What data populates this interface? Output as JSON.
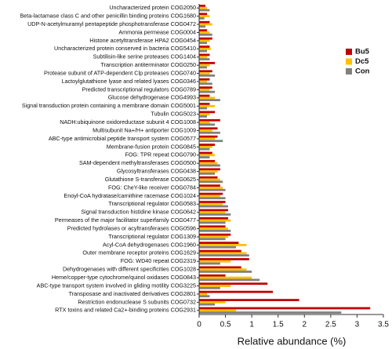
{
  "chart_data": {
    "type": "hbar",
    "x_label": "Relative abundance (%)",
    "categories": [
      "Uncharacterized protein COG2050",
      "Beta-lactamase class C and other penicillin binding proteins COG1680",
      "UDP-N-acetylmuramyl pentapeptide phosphotransferase COG0472",
      "Ammonia permease COG0004",
      "Histone acetyltransferase HPA2 COG0454",
      "Uncharacterized protein conserved in bacteria COG5410",
      "Subtilisin-like serine proteases COG1404",
      "Transcription antiterminator COG0250",
      "Protease subunit of ATP-dependent Clp proteases COG0740",
      "Lactoylglutathione lyase and related lyases COG0346",
      "Predicted transcriptional regulators COG0789",
      "Glucose dehydrogenase COG4993",
      "Signal transduction protein containing a membrane domain COG5001",
      "Tubulin COG5023",
      "NADH:ubiquinone oxidoreductase subunit 4 COG1008",
      "Multisubunit Na+/H+ antiporter COG1009",
      "ABC-type antimicrobial peptide transport system COG0577",
      "Membrane-fusion protein COG0845",
      "FOG: TPR repeat COG0790",
      "SAM-dependent methyltransferases COG0500",
      "Glycosyltransferases COG0438",
      "Glutathione S-transferase COG0625",
      "FOG: CheY-like receiver COG0784",
      "Enoyl-CoA hydratase/carnithine racemase COG1024",
      "Transcriptional regulator COG0583",
      "Signal transduction histidine kinase COG0642",
      "Permeases of the major facilitator superfamily COG0477",
      "Predicted hydrolases or acyltransferases COG0596",
      "Transcriptional regulator COG1309",
      "Acyl-CoA dehydrogenases COG1960",
      "Outer membrane receptor proteins COG1629",
      "FOG: WD40 repeat COG2319",
      "Dehydrogenases with different specificities COG1028",
      "Heme/copper-type cytochrome/quinol oxidases COG0843",
      "ABC-type transport system involved in gliding motility COG3225",
      "Transposase and inactivated derivatives COG2801",
      "Restriction endonuclease S subunits COG0732",
      "RTX toxins and related Ca2+-binding proteins COG2931"
    ],
    "series": [
      {
        "name": "Bu5",
        "color": "#c00000",
        "values": [
          0.12,
          0.15,
          0.2,
          0.15,
          0.25,
          0.2,
          0.2,
          0.3,
          0.25,
          0.2,
          0.25,
          0.2,
          0.2,
          0.3,
          0.4,
          0.35,
          0.35,
          0.3,
          0.25,
          0.3,
          0.4,
          0.35,
          0.4,
          0.45,
          0.5,
          0.55,
          0.55,
          0.5,
          0.6,
          0.75,
          0.8,
          0.95,
          0.8,
          0.5,
          1.3,
          1.4,
          1.9,
          3.25
        ]
      },
      {
        "name": "Dc5",
        "color": "#ffc000",
        "values": [
          0.15,
          0.2,
          0.25,
          0.2,
          0.2,
          0.22,
          0.15,
          0.2,
          0.2,
          0.15,
          0.2,
          0.3,
          0.3,
          0.2,
          0.2,
          0.25,
          0.3,
          0.25,
          0.3,
          0.35,
          0.35,
          0.4,
          0.45,
          0.4,
          0.45,
          0.5,
          0.6,
          0.55,
          0.55,
          0.9,
          0.9,
          0.6,
          0.9,
          1.0,
          0.6,
          0.15,
          0.5,
          0.7
        ]
      },
      {
        "name": "Con",
        "color": "#808080",
        "values": [
          0.2,
          0.1,
          0.12,
          0.25,
          0.15,
          0.15,
          0.2,
          0.15,
          0.3,
          0.25,
          0.3,
          0.4,
          0.15,
          0.15,
          0.3,
          0.4,
          0.45,
          0.2,
          0.2,
          0.4,
          0.3,
          0.45,
          0.5,
          0.5,
          0.55,
          0.6,
          0.5,
          0.6,
          0.5,
          0.7,
          0.95,
          0.4,
          1.0,
          1.15,
          0.4,
          0.2,
          0.3,
          2.7
        ]
      }
    ],
    "xlim": [
      0,
      3.5
    ],
    "xticks": [
      0,
      0.5,
      1,
      1.5,
      2,
      2.5,
      3,
      3.5
    ],
    "legend_position": "upper right"
  }
}
